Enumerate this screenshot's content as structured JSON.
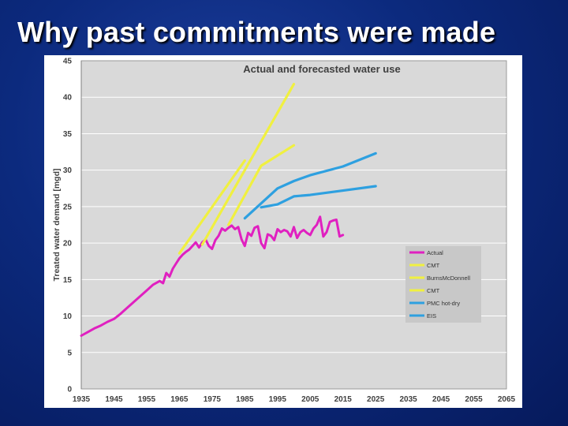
{
  "slide": {
    "title": "Why past commitments were made"
  },
  "chart_data": {
    "type": "line",
    "title": "Actual and forecasted water use",
    "xlabel": "",
    "ylabel": "Treated water demand [mgd]",
    "xlim": [
      1935,
      2065
    ],
    "ylim": [
      0,
      45
    ],
    "xticks": [
      1935,
      1945,
      1955,
      1965,
      1975,
      1985,
      1995,
      2005,
      2015,
      2025,
      2035,
      2045,
      2055,
      2065
    ],
    "yticks": [
      0,
      5,
      10,
      15,
      20,
      25,
      30,
      35,
      40,
      45
    ],
    "grid": true,
    "legend_position": "right",
    "colors": {
      "actual": "#e020c0",
      "forecast_yellow": "#f0f040",
      "forecast_blue": "#2ea0e0",
      "plot_background": "#d9d9d9",
      "legend_background": "#c8c8c8",
      "gridline": "#ffffff"
    },
    "series": [
      {
        "name": "Actual",
        "color": "#e020c0",
        "points": [
          [
            1935,
            7.3
          ],
          [
            1937,
            7.8
          ],
          [
            1939,
            8.3
          ],
          [
            1941,
            8.7
          ],
          [
            1943,
            9.2
          ],
          [
            1945,
            9.6
          ],
          [
            1947,
            10.3
          ],
          [
            1949,
            11.1
          ],
          [
            1951,
            11.9
          ],
          [
            1953,
            12.7
          ],
          [
            1955,
            13.5
          ],
          [
            1957,
            14.3
          ],
          [
            1959,
            14.8
          ],
          [
            1960,
            14.5
          ],
          [
            1961,
            15.9
          ],
          [
            1962,
            15.4
          ],
          [
            1963,
            16.5
          ],
          [
            1964,
            17.2
          ],
          [
            1965,
            17.9
          ],
          [
            1966,
            18.4
          ],
          [
            1967,
            18.8
          ],
          [
            1968,
            19.1
          ],
          [
            1969,
            19.6
          ],
          [
            1970,
            20.1
          ],
          [
            1971,
            19.4
          ],
          [
            1972,
            20.1
          ],
          [
            1973,
            20.5
          ],
          [
            1974,
            19.6
          ],
          [
            1975,
            19.2
          ],
          [
            1976,
            20.4
          ],
          [
            1977,
            21.0
          ],
          [
            1978,
            22.0
          ],
          [
            1979,
            21.7
          ],
          [
            1980,
            22.1
          ],
          [
            1981,
            22.4
          ],
          [
            1982,
            21.9
          ],
          [
            1983,
            22.2
          ],
          [
            1984,
            20.5
          ],
          [
            1985,
            19.6
          ],
          [
            1986,
            21.4
          ],
          [
            1987,
            21.0
          ],
          [
            1988,
            22.1
          ],
          [
            1989,
            22.3
          ],
          [
            1990,
            20.0
          ],
          [
            1991,
            19.3
          ],
          [
            1992,
            21.2
          ],
          [
            1993,
            21.0
          ],
          [
            1994,
            20.4
          ],
          [
            1995,
            21.9
          ],
          [
            1996,
            21.5
          ],
          [
            1997,
            21.8
          ],
          [
            1998,
            21.6
          ],
          [
            1999,
            20.9
          ],
          [
            2000,
            22.2
          ],
          [
            2001,
            20.7
          ],
          [
            2002,
            21.5
          ],
          [
            2003,
            21.8
          ],
          [
            2004,
            21.4
          ],
          [
            2005,
            21.1
          ],
          [
            2006,
            22.0
          ],
          [
            2007,
            22.5
          ],
          [
            2008,
            23.6
          ],
          [
            2009,
            20.9
          ],
          [
            2010,
            21.5
          ],
          [
            2011,
            22.9
          ],
          [
            2012,
            23.1
          ],
          [
            2013,
            23.2
          ],
          [
            2014,
            20.9
          ],
          [
            2015,
            21.1
          ]
        ]
      },
      {
        "name": "CMT",
        "color": "#f0f040",
        "points": [
          [
            1965,
            18.6
          ],
          [
            1985,
            31.3
          ]
        ]
      },
      {
        "name": "BurnsMcDonnell",
        "color": "#f0f040",
        "points": [
          [
            1972,
            19.8
          ],
          [
            2000,
            41.8
          ]
        ]
      },
      {
        "name": "CMT",
        "color": "#f0f040",
        "points": [
          [
            1980,
            22.5
          ],
          [
            1990,
            30.6
          ],
          [
            2000,
            33.4
          ]
        ]
      },
      {
        "name": "PMC hot-dry",
        "color": "#2ea0e0",
        "points": [
          [
            1985,
            23.4
          ],
          [
            1995,
            27.5
          ],
          [
            2000,
            28.5
          ],
          [
            2005,
            29.3
          ],
          [
            2015,
            30.5
          ],
          [
            2025,
            32.3
          ]
        ]
      },
      {
        "name": "EIS",
        "color": "#2ea0e0",
        "points": [
          [
            1990,
            24.9
          ],
          [
            1995,
            25.3
          ],
          [
            2000,
            26.4
          ],
          [
            2005,
            26.6
          ],
          [
            2015,
            27.2
          ],
          [
            2025,
            27.8
          ]
        ]
      }
    ]
  }
}
